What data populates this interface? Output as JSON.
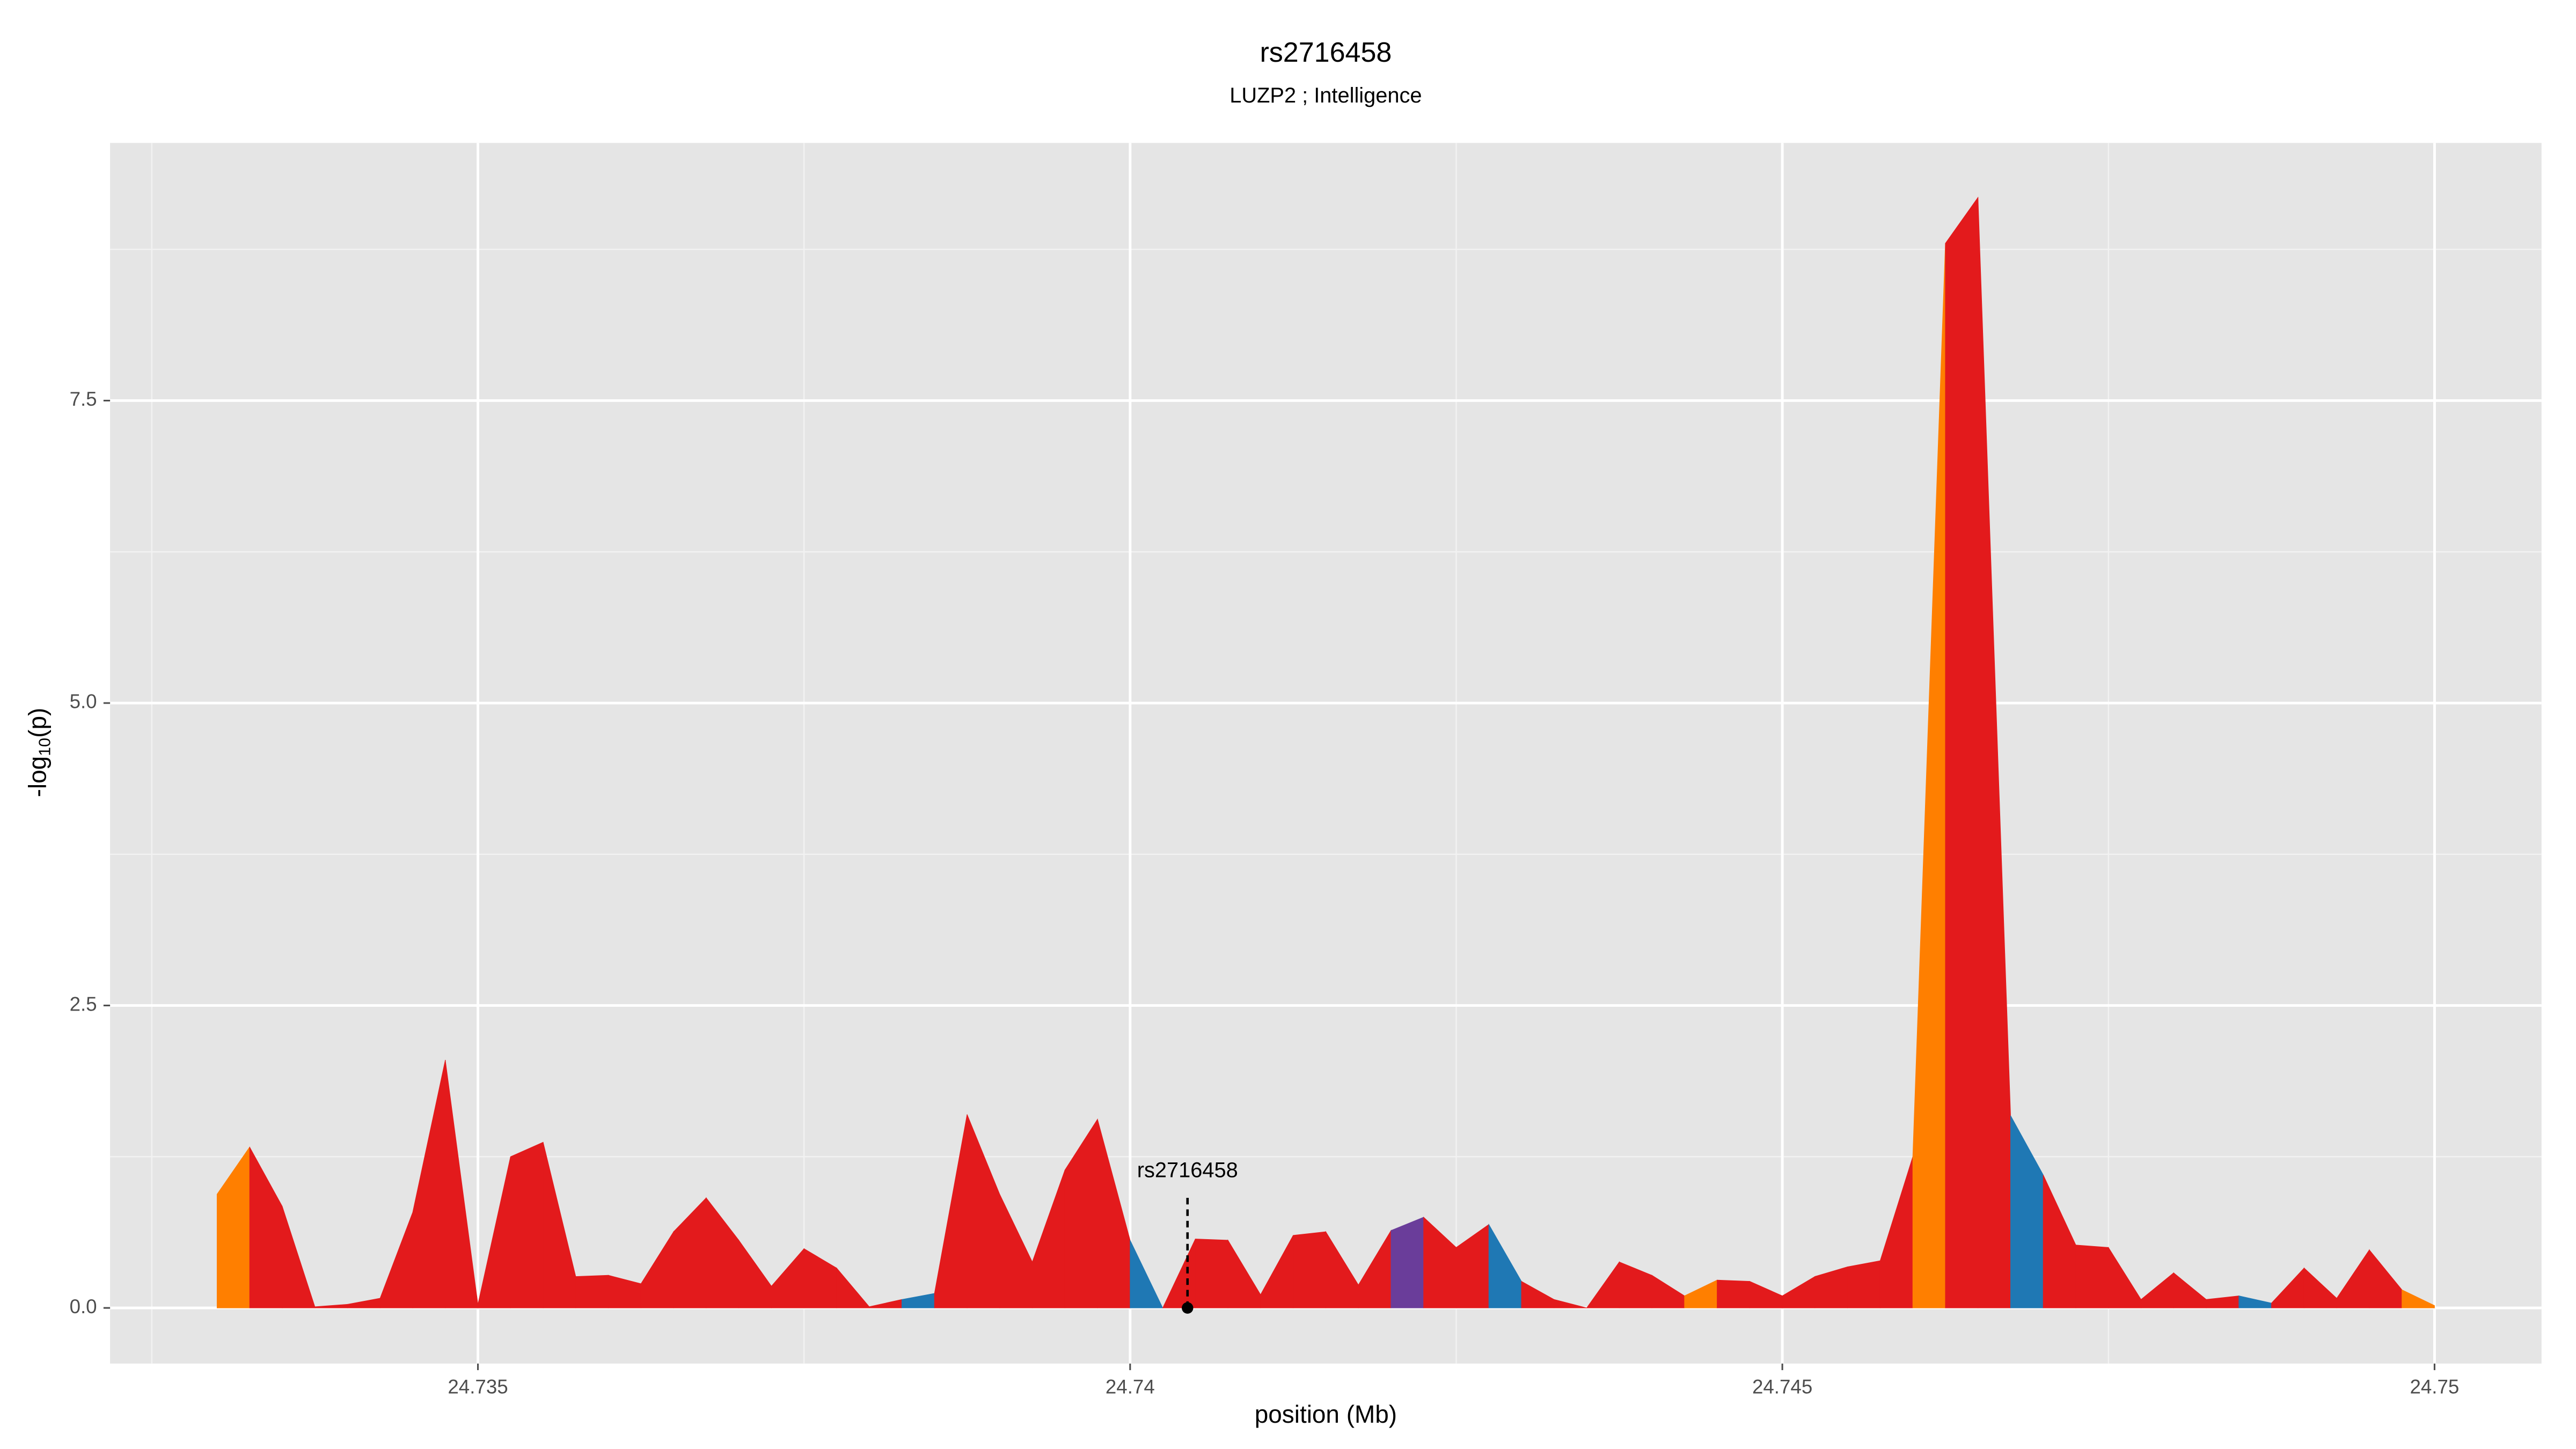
{
  "chart_data": {
    "type": "segmented-area",
    "title": "rs2716458",
    "subtitle": "LUZP2 ; Intelligence",
    "xlabel": "position (Mb)",
    "ylabel": {
      "prefix": "-log",
      "sub": "10",
      "suffix": "(p)"
    },
    "x": [
      24.733,
      24.73325,
      24.7335,
      24.73375,
      24.734,
      24.73425,
      24.7345,
      24.73475,
      24.735,
      24.73525,
      24.7355,
      24.73575,
      24.736,
      24.73625,
      24.7365,
      24.73675,
      24.737,
      24.73725,
      24.7375,
      24.73775,
      24.738,
      24.73825,
      24.7385,
      24.73875,
      24.739,
      24.73925,
      24.7395,
      24.73975,
      24.74,
      24.74025,
      24.7405,
      24.74075,
      24.741,
      24.74125,
      24.7415,
      24.74175,
      24.742,
      24.74225,
      24.7425,
      24.74275,
      24.743,
      24.74325,
      24.7435,
      24.74375,
      24.744,
      24.74425,
      24.7445,
      24.74475,
      24.745,
      24.74525,
      24.7455,
      24.74575,
      24.746,
      24.74625,
      24.7465,
      24.74675,
      24.747,
      24.74725,
      24.7475,
      24.74775,
      24.748,
      24.74825,
      24.7485,
      24.74875,
      24.749,
      24.74925,
      24.7495,
      24.74975,
      24.75
    ],
    "values": [
      0.94,
      1.33,
      0.84,
      0.01,
      0.03,
      0.08,
      0.79,
      2.05,
      0.03,
      1.25,
      1.37,
      0.26,
      0.27,
      0.2,
      0.63,
      0.91,
      0.56,
      0.18,
      0.49,
      0.33,
      0.01,
      0.07,
      0.12,
      1.6,
      0.94,
      0.38,
      1.14,
      1.56,
      0.56,
      0,
      0.57,
      0.56,
      0.11,
      0.6,
      0.63,
      0.19,
      0.64,
      0.75,
      0.5,
      0.69,
      0.22,
      0.07,
      0,
      0.38,
      0.27,
      0.1,
      0.23,
      0.22,
      0.1,
      0.26,
      0.34,
      0.39,
      1.25,
      8.8,
      9.18,
      1.59,
      1.1,
      0.52,
      0.5,
      0.07,
      0.29,
      0.07,
      0.1,
      0.04,
      0.33,
      0.08,
      0.48,
      0.15,
      0.02
    ],
    "segment_colors": [
      "#ff7f00",
      "#e31a1c",
      "#e31a1c",
      "#e31a1c",
      "#e31a1c",
      "#e31a1c",
      "#e31a1c",
      "#e31a1c",
      "#e31a1c",
      "#e31a1c",
      "#e31a1c",
      "#e31a1c",
      "#e31a1c",
      "#e31a1c",
      "#e31a1c",
      "#e31a1c",
      "#e31a1c",
      "#e31a1c",
      "#e31a1c",
      "#e31a1c",
      "#e31a1c",
      "#1f78b4",
      "#e31a1c",
      "#e31a1c",
      "#e31a1c",
      "#e31a1c",
      "#e31a1c",
      "#e31a1c",
      "#1f78b4",
      "#e31a1c",
      "#e31a1c",
      "#e31a1c",
      "#e31a1c",
      "#e31a1c",
      "#e31a1c",
      "#e31a1c",
      "#6a3d9a",
      "#e31a1c",
      "#e31a1c",
      "#1f78b4",
      "#e31a1c",
      "#e31a1c",
      "#e31a1c",
      "#e31a1c",
      "#e31a1c",
      "#ff7f00",
      "#e31a1c",
      "#e31a1c",
      "#e31a1c",
      "#e31a1c",
      "#e31a1c",
      "#e31a1c",
      "#ff7f00",
      "#e31a1c",
      "#e31a1c",
      "#1f78b4",
      "#e31a1c",
      "#e31a1c",
      "#e31a1c",
      "#e31a1c",
      "#e31a1c",
      "#e31a1c",
      "#1f78b4",
      "#e31a1c",
      "#e31a1c",
      "#e31a1c",
      "#e31a1c",
      "#ff7f00"
    ],
    "annotation": {
      "label": "rs2716458",
      "x": 24.74044,
      "y": 0
    },
    "xlim": [
      24.73218,
      24.75082
    ],
    "ylim": [
      -0.46,
      9.63
    ],
    "xticks": [
      24.735,
      24.74,
      24.745,
      24.75
    ],
    "yticks": [
      {
        "value": 0,
        "label": "0.0"
      },
      2.5,
      {
        "value": 5,
        "label": "5.0"
      },
      7.5
    ],
    "minor_xticks": [
      24.7325,
      24.7375,
      24.7425,
      24.7475
    ],
    "minor_yticks": [
      1.25,
      3.75,
      6.25,
      8.75
    ],
    "grid": true
  }
}
